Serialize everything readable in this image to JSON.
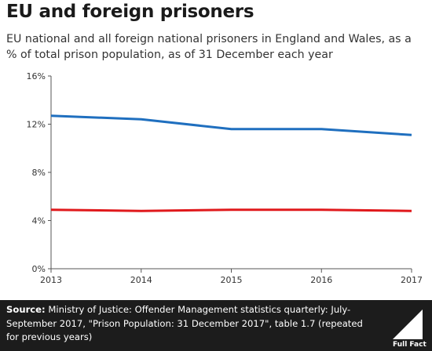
{
  "header": {
    "title": "EU and foreign prisoners",
    "subtitle": "EU national and all foreign national prisoners in England and Wales, as a % of total prison population, as of 31 December each year"
  },
  "footer": {
    "source_label": "Source:",
    "source_text": " Ministry of Justice: Offender Management statistics quarterly: July-September 2017, \"Prison Population: 31 December 2017\", table 1.7 (repeated for previous years)",
    "logo_text": "Full Fact",
    "logo_icon": "full-fact-logo-icon"
  },
  "colors": {
    "foreign": "#1f6fbf",
    "eu": "#e0191c",
    "axis": "#555555",
    "grid": "#cccccc",
    "footer_bg": "#1c1c1c"
  },
  "chart_data": {
    "type": "line",
    "x": [
      2013,
      2014,
      2015,
      2016,
      2017
    ],
    "categories": [
      "2013",
      "2014",
      "2015",
      "2016",
      "2017"
    ],
    "series": [
      {
        "values": [
          12.7,
          12.4,
          11.6,
          11.6,
          11.1
        ],
        "color": "#1f6fbf"
      },
      {
        "values": [
          4.9,
          4.8,
          4.9,
          4.9,
          4.8
        ],
        "color": "#e0191c"
      }
    ],
    "yticks": [
      "0%",
      "4%",
      "8%",
      "12%",
      "16%"
    ],
    "ytick_values": [
      0,
      4,
      8,
      12,
      16
    ],
    "ylim": [
      0,
      16
    ],
    "xlim": [
      2013,
      2017
    ],
    "grid": false
  }
}
